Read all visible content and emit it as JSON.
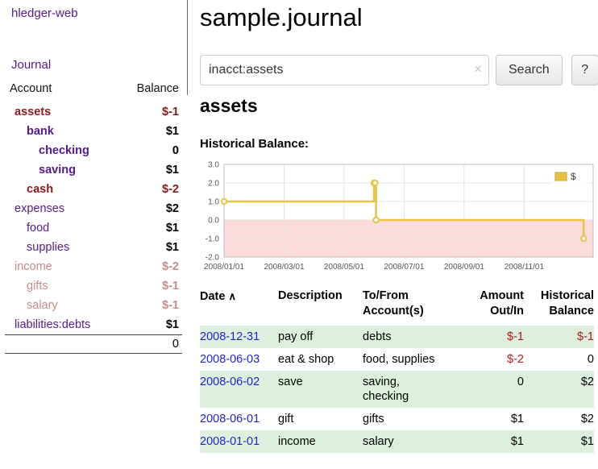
{
  "colors": {
    "link_purple": "#551a8b",
    "date_link_blue": "#2323cc",
    "negative_strong": "#8b1a1a",
    "negative_soft": "#c98a8a",
    "table_negative": "#a41e1e",
    "row_stripe_green": "#ddefdd",
    "chart_line_yellow": "#e9c342",
    "chart_negative_region": "#fbdbdb"
  },
  "sidebar": {
    "brand": "hledger-web",
    "nav": {
      "journal": "Journal"
    },
    "accounts_table": {
      "col_account": "Account",
      "col_balance": "Balance",
      "rows": [
        {
          "name": "assets",
          "balance": "$-1",
          "indent": 0,
          "bold": true,
          "name_tone": "neg-strong",
          "balance_tone": "neg-strong"
        },
        {
          "name": "bank",
          "balance": "$1",
          "indent": 1,
          "bold": true,
          "name_tone": "link",
          "balance_tone": "normal"
        },
        {
          "name": "checking",
          "balance": "0",
          "indent": 2,
          "bold": true,
          "name_tone": "link",
          "balance_tone": "normal"
        },
        {
          "name": "saving",
          "balance": "$1",
          "indent": 2,
          "bold": true,
          "name_tone": "link",
          "balance_tone": "normal"
        },
        {
          "name": "cash",
          "balance": "$-2",
          "indent": 1,
          "bold": true,
          "name_tone": "neg-strong",
          "balance_tone": "neg-strong"
        },
        {
          "name": "expenses",
          "balance": "$2",
          "indent": 0,
          "bold": false,
          "name_tone": "link",
          "balance_tone": "normal"
        },
        {
          "name": "food",
          "balance": "$1",
          "indent": 1,
          "bold": false,
          "name_tone": "link",
          "balance_tone": "normal"
        },
        {
          "name": "supplies",
          "balance": "$1",
          "indent": 1,
          "bold": false,
          "name_tone": "link",
          "balance_tone": "normal"
        },
        {
          "name": "income",
          "balance": "$-2",
          "indent": 0,
          "bold": false,
          "name_tone": "neg-soft",
          "balance_tone": "neg-soft"
        },
        {
          "name": "gifts",
          "balance": "$-1",
          "indent": 1,
          "bold": false,
          "name_tone": "neg-soft",
          "balance_tone": "neg-soft"
        },
        {
          "name": "salary",
          "balance": "$-1",
          "indent": 1,
          "bold": false,
          "name_tone": "neg-soft",
          "balance_tone": "neg-soft"
        },
        {
          "name": "liabilities:debts",
          "balance": "$1",
          "indent": 0,
          "bold": false,
          "name_tone": "link",
          "balance_tone": "normal"
        }
      ],
      "total": "0"
    }
  },
  "main": {
    "title": "sample.journal",
    "search": {
      "value": "inacct:assets",
      "clear_icon": "×",
      "search_button": "Search",
      "help_button": "?"
    },
    "register": {
      "heading": "assets",
      "chart_title": "Historical Balance:",
      "table": {
        "headers": {
          "date": "Date",
          "sort_icon": "∧",
          "description": "Description",
          "account": "To/From\nAccount(s)",
          "amount": "Amount\nOut/In",
          "balance": "Historical\nBalance"
        },
        "rows": [
          {
            "date": "2008-12-31",
            "description": "pay off",
            "accounts": "debts",
            "amount": "$-1",
            "amount_negative": true,
            "balance": "$-1",
            "balance_negative": true
          },
          {
            "date": "2008-06-03",
            "description": "eat & shop",
            "accounts": "food, supplies",
            "amount": "$-2",
            "amount_negative": true,
            "balance": "0",
            "balance_negative": false
          },
          {
            "date": "2008-06-02",
            "description": "save",
            "accounts": "saving,\nchecking",
            "amount": "0",
            "amount_negative": false,
            "balance": "$2",
            "balance_negative": false
          },
          {
            "date": "2008-06-01",
            "description": "gift",
            "accounts": "gifts",
            "amount": "$1",
            "amount_negative": false,
            "balance": "$2",
            "balance_negative": false
          },
          {
            "date": "2008-01-01",
            "description": "income",
            "accounts": "salary",
            "amount": "$1",
            "amount_negative": false,
            "balance": "$1",
            "balance_negative": false
          }
        ]
      }
    }
  },
  "chart_data": {
    "type": "line",
    "title": "Historical Balance",
    "step": true,
    "x": [
      "2008-01-01",
      "2008-06-01",
      "2008-06-02",
      "2008-06-03",
      "2008-12-31"
    ],
    "series": [
      {
        "name": "$",
        "values": [
          1,
          2,
          2,
          0,
          -1
        ]
      }
    ],
    "ylim": [
      -2,
      3
    ],
    "yticks": [
      "3.0",
      "2.0",
      "1.0",
      "0.0",
      "-1.0",
      "-2.0"
    ],
    "xticks": [
      "2008/01/01",
      "2008/03/01",
      "2008/05/01",
      "2008/07/01",
      "2008/09/01",
      "2008/11/01"
    ],
    "legend_position": "top-right",
    "grid": true,
    "line_color": "#e9c342",
    "grid_color": "#e4e4e4",
    "negative_region_color": "#fbdbdb"
  }
}
